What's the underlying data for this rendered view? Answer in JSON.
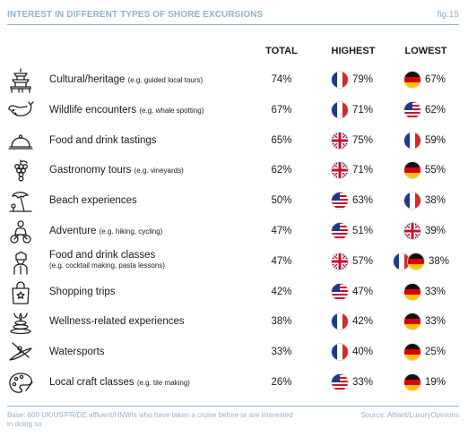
{
  "header": {
    "title": "INTEREST IN DIFFERENT TYPES OF SHORE EXCURSIONS",
    "fig": "fig.15"
  },
  "columns": {
    "total": "TOTAL",
    "highest": "HIGHEST",
    "lowest": "LOWEST"
  },
  "rows": [
    {
      "label": "Cultural/heritage",
      "note": "(e.g. guided local tours)",
      "sub": "",
      "icon": "pagoda-icon",
      "total": "74%",
      "highest": {
        "flags": [
          "fr"
        ],
        "value": "79%"
      },
      "lowest": {
        "flags": [
          "de"
        ],
        "value": "67%"
      }
    },
    {
      "label": "Wildlife encounters",
      "note": "(e.g. whale spotting)",
      "sub": "",
      "icon": "whale-icon",
      "total": "67%",
      "highest": {
        "flags": [
          "fr"
        ],
        "value": "71%"
      },
      "lowest": {
        "flags": [
          "us"
        ],
        "value": "62%"
      }
    },
    {
      "label": "Food and drink tastings",
      "note": "",
      "sub": "",
      "icon": "cloche-icon",
      "total": "65%",
      "highest": {
        "flags": [
          "uk"
        ],
        "value": "75%"
      },
      "lowest": {
        "flags": [
          "fr"
        ],
        "value": "59%"
      }
    },
    {
      "label": "Gastronomy tours",
      "note": "(e.g. vineyards)",
      "sub": "",
      "icon": "grapes-icon",
      "total": "62%",
      "highest": {
        "flags": [
          "uk"
        ],
        "value": "71%"
      },
      "lowest": {
        "flags": [
          "de"
        ],
        "value": "55%"
      }
    },
    {
      "label": "Beach experiences",
      "note": "",
      "sub": "",
      "icon": "beach-umbrella-icon",
      "total": "50%",
      "highest": {
        "flags": [
          "us"
        ],
        "value": "63%"
      },
      "lowest": {
        "flags": [
          "fr"
        ],
        "value": "38%"
      }
    },
    {
      "label": "Adventure",
      "note": "(e.g. hiking, cycling)",
      "sub": "",
      "icon": "cyclist-icon",
      "total": "47%",
      "highest": {
        "flags": [
          "us"
        ],
        "value": "51%"
      },
      "lowest": {
        "flags": [
          "uk"
        ],
        "value": "39%"
      }
    },
    {
      "label": "Food and drink classes",
      "note": "",
      "sub": "(e.g. cocktail making, pasta lessons)",
      "icon": "chef-icon",
      "total": "47%",
      "highest": {
        "flags": [
          "uk"
        ],
        "value": "57%"
      },
      "lowest": {
        "flags": [
          "fr",
          "de"
        ],
        "value": "38%"
      }
    },
    {
      "label": "Shopping trips",
      "note": "",
      "sub": "",
      "icon": "shopping-bag-icon",
      "total": "42%",
      "highest": {
        "flags": [
          "us"
        ],
        "value": "47%"
      },
      "lowest": {
        "flags": [
          "de"
        ],
        "value": "33%"
      }
    },
    {
      "label": "Wellness-related experiences",
      "note": "",
      "sub": "",
      "icon": "spa-stones-icon",
      "total": "38%",
      "highest": {
        "flags": [
          "fr"
        ],
        "value": "42%"
      },
      "lowest": {
        "flags": [
          "de"
        ],
        "value": "33%"
      }
    },
    {
      "label": "Watersports",
      "note": "",
      "sub": "",
      "icon": "kayak-icon",
      "total": "33%",
      "highest": {
        "flags": [
          "fr"
        ],
        "value": "40%"
      },
      "lowest": {
        "flags": [
          "de"
        ],
        "value": "25%"
      }
    },
    {
      "label": "Local craft classes",
      "note": "(e.g. tile making)",
      "sub": "",
      "icon": "paint-palette-icon",
      "total": "26%",
      "highest": {
        "flags": [
          "us"
        ],
        "value": "33%"
      },
      "lowest": {
        "flags": [
          "de"
        ],
        "value": "19%"
      }
    }
  ],
  "footer": {
    "base": "Base: 600 UK/US/FR/DE affluent/HNWIs who have taken a cruise before or are interested in doing so",
    "source": "Source: Altiant/LuxuryOpinions"
  },
  "colors": {
    "accent": "#8fb3cf",
    "text": "#1a1a1a"
  }
}
